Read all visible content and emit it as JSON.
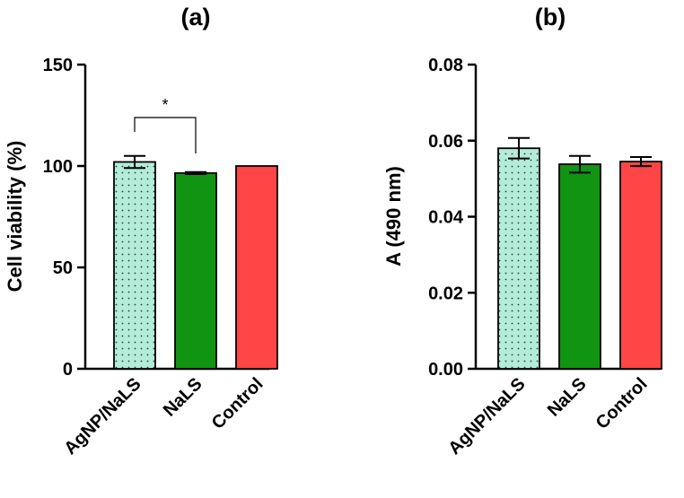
{
  "chart_data": [
    {
      "type": "bar",
      "title": "(a)",
      "xlabel": "",
      "ylabel": "Cell viability (%)",
      "ylim": [
        0,
        150
      ],
      "yticks": [
        0,
        50,
        100,
        150
      ],
      "categories": [
        "AgNP/NaLS",
        "NaLS",
        "Control"
      ],
      "values": [
        102,
        96.5,
        100
      ],
      "errors": [
        3,
        0.5,
        0
      ],
      "colors": [
        "#b3ecd9",
        "#119411",
        "#ff4545"
      ],
      "patterns": [
        "dotted",
        "solid",
        "solid"
      ],
      "significance": [
        {
          "from": 0,
          "to": 1,
          "label": "*"
        }
      ]
    },
    {
      "type": "bar",
      "title": "(b)",
      "xlabel": "",
      "ylabel": "A (490 nm)",
      "ylim": [
        0,
        0.08
      ],
      "yticks": [
        "0.00",
        "0.02",
        "0.04",
        "0.06",
        "0.08"
      ],
      "categories": [
        "AgNP/NaLS",
        "NaLS",
        "Control"
      ],
      "values": [
        0.058,
        0.0538,
        0.0545
      ],
      "errors": [
        0.0027,
        0.0022,
        0.0012
      ],
      "colors": [
        "#b3ecd9",
        "#119411",
        "#ff4545"
      ],
      "patterns": [
        "dotted",
        "solid",
        "solid"
      ],
      "significance": []
    }
  ]
}
